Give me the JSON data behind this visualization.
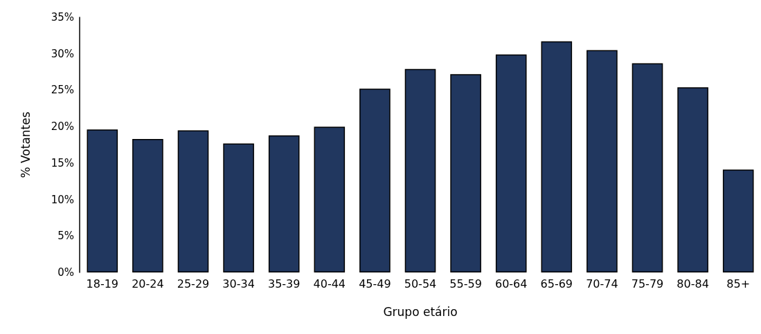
{
  "chart_data": {
    "type": "bar",
    "xlabel": "Grupo etário",
    "ylabel": "% Votantes",
    "categories": [
      "18-19",
      "20-24",
      "25-29",
      "30-34",
      "35-39",
      "40-44",
      "45-49",
      "50-54",
      "55-59",
      "60-64",
      "65-69",
      "70-74",
      "75-79",
      "80-84",
      "85+"
    ],
    "values": [
      19.6,
      18.3,
      19.5,
      17.7,
      18.8,
      20.0,
      25.2,
      27.9,
      27.2,
      29.9,
      31.7,
      30.5,
      28.7,
      25.4,
      14.1
    ],
    "color": "#21375f",
    "ylim": [
      0,
      35
    ],
    "yticks": [
      {
        "value": 0,
        "label": "0%"
      },
      {
        "value": 5,
        "label": "5%"
      },
      {
        "value": 10,
        "label": "10%"
      },
      {
        "value": 15,
        "label": "15%"
      },
      {
        "value": 20,
        "label": "20%"
      },
      {
        "value": 25,
        "label": "25%"
      },
      {
        "value": 30,
        "label": "30%"
      },
      {
        "value": 35,
        "label": "35%"
      }
    ],
    "grid": false
  }
}
